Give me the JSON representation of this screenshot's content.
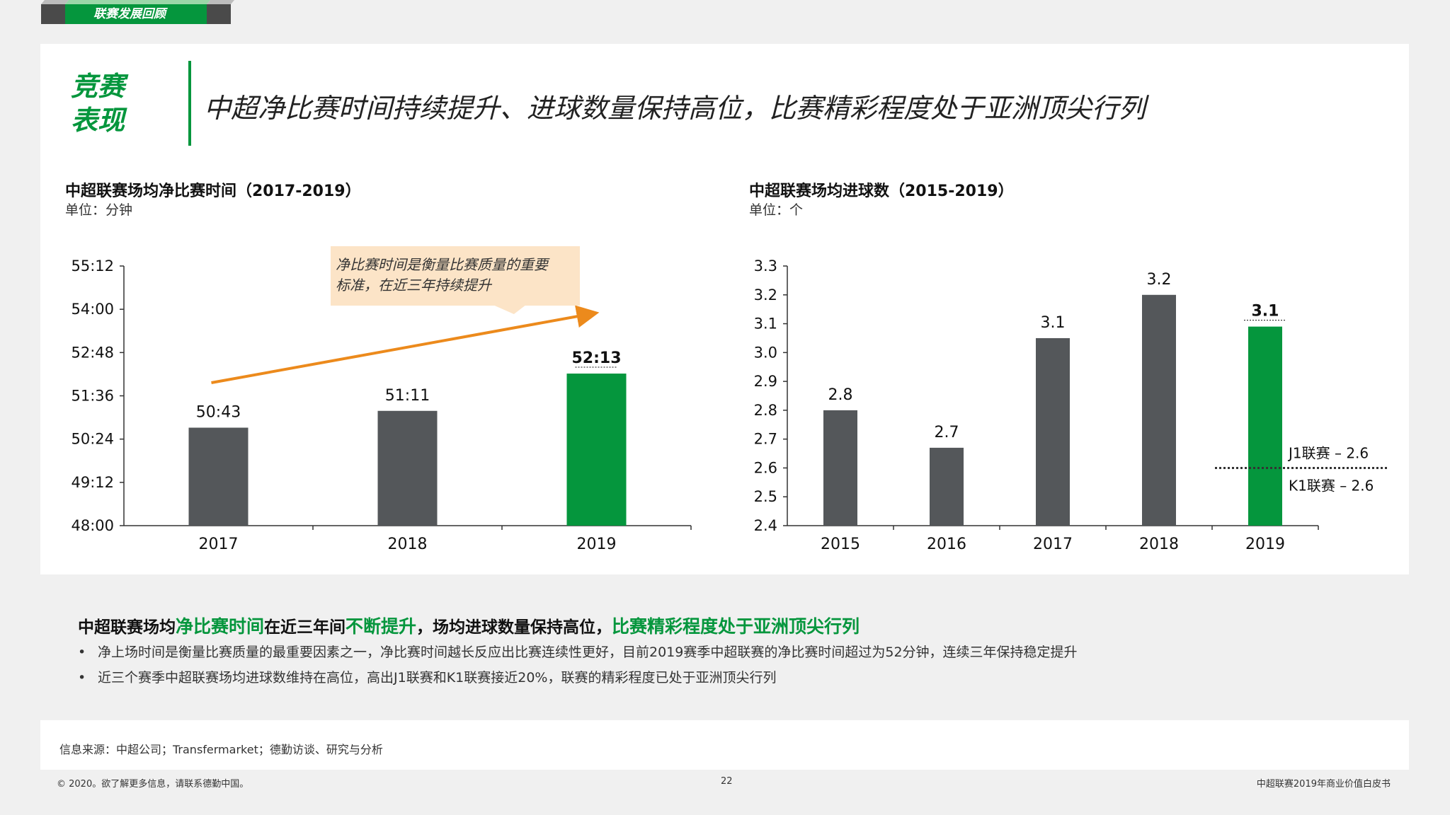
{
  "top_tab": {
    "label": "联赛发展回顾"
  },
  "section_tag": {
    "line1": "竞赛",
    "line2": "表现"
  },
  "headline": "中超净比赛时间持续提升、进球数量保持高位，比赛精彩程度处于亚洲顶尖行列",
  "callout": {
    "text_line1": "净比赛时间是衡量比赛质量的重要",
    "text_line2": "标准，在近三年持续提升"
  },
  "chart_data": [
    {
      "type": "bar",
      "title": "中超联赛场均净比赛时间（2017-2019）",
      "unit": "单位：分钟",
      "categories": [
        "2017",
        "2018",
        "2019"
      ],
      "values": [
        50.717,
        51.183,
        52.217
      ],
      "value_labels": [
        "50:43",
        "51:11",
        "52:13"
      ],
      "bar_colors": [
        "#54575a",
        "#54575a",
        "#05963d"
      ],
      "y_ticks": [
        "48:00",
        "49:12",
        "50:24",
        "51:36",
        "52:48",
        "54:00",
        "55:12"
      ],
      "y_tick_values": [
        48.0,
        49.2,
        50.4,
        51.6,
        52.8,
        54.0,
        55.2
      ],
      "ylim": [
        48.0,
        55.2
      ],
      "trend_arrow": true
    },
    {
      "type": "bar",
      "title": "中超联赛场均进球数（2015-2019）",
      "unit": "单位：个",
      "categories": [
        "2015",
        "2016",
        "2017",
        "2018",
        "2019"
      ],
      "values": [
        2.8,
        2.67,
        3.05,
        3.2,
        3.09
      ],
      "value_labels": [
        "2.8",
        "2.7",
        "3.1",
        "3.2",
        "3.1"
      ],
      "bar_colors": [
        "#54575a",
        "#54575a",
        "#54575a",
        "#54575a",
        "#05963d"
      ],
      "y_ticks": [
        "2.4",
        "2.5",
        "2.6",
        "2.7",
        "2.8",
        "2.9",
        "3.0",
        "3.1",
        "3.2",
        "3.3"
      ],
      "y_tick_values": [
        2.4,
        2.5,
        2.6,
        2.7,
        2.8,
        2.9,
        3.0,
        3.1,
        3.2,
        3.3
      ],
      "ylim": [
        2.4,
        3.3
      ],
      "reference_line": {
        "value": 2.6,
        "label_top": "J1联赛 – 2.6",
        "label_bottom": "K1联赛 – 2.6"
      }
    }
  ],
  "summary": {
    "p1": "中超联赛场均",
    "h1": "净比赛时间",
    "p2": "在近三年间",
    "h2": "不断提升",
    "p3": "，场均进球数量保持高位，",
    "h3": "比赛精彩程度处于亚洲顶尖行列"
  },
  "bullets": [
    "净上场时间是衡量比赛质量的最重要因素之一，净比赛时间越长反应出比赛连续性更好，目前2019赛季中超联赛的净比赛时间超过为52分钟，连续三年保持稳定提升",
    "近三个赛季中超联赛场均进球数维持在高位，高出J1联赛和K1联赛接近20%，联赛的精彩程度已处于亚洲顶尖行列"
  ],
  "source": "信息来源：中超公司；Transfermarket；德勤访谈、研究与分析",
  "footer": {
    "copyright": "© 2020。欲了解更多信息，请联系德勤中国。",
    "page": "22",
    "doc_title": "中超联赛2019年商业价值白皮书"
  }
}
